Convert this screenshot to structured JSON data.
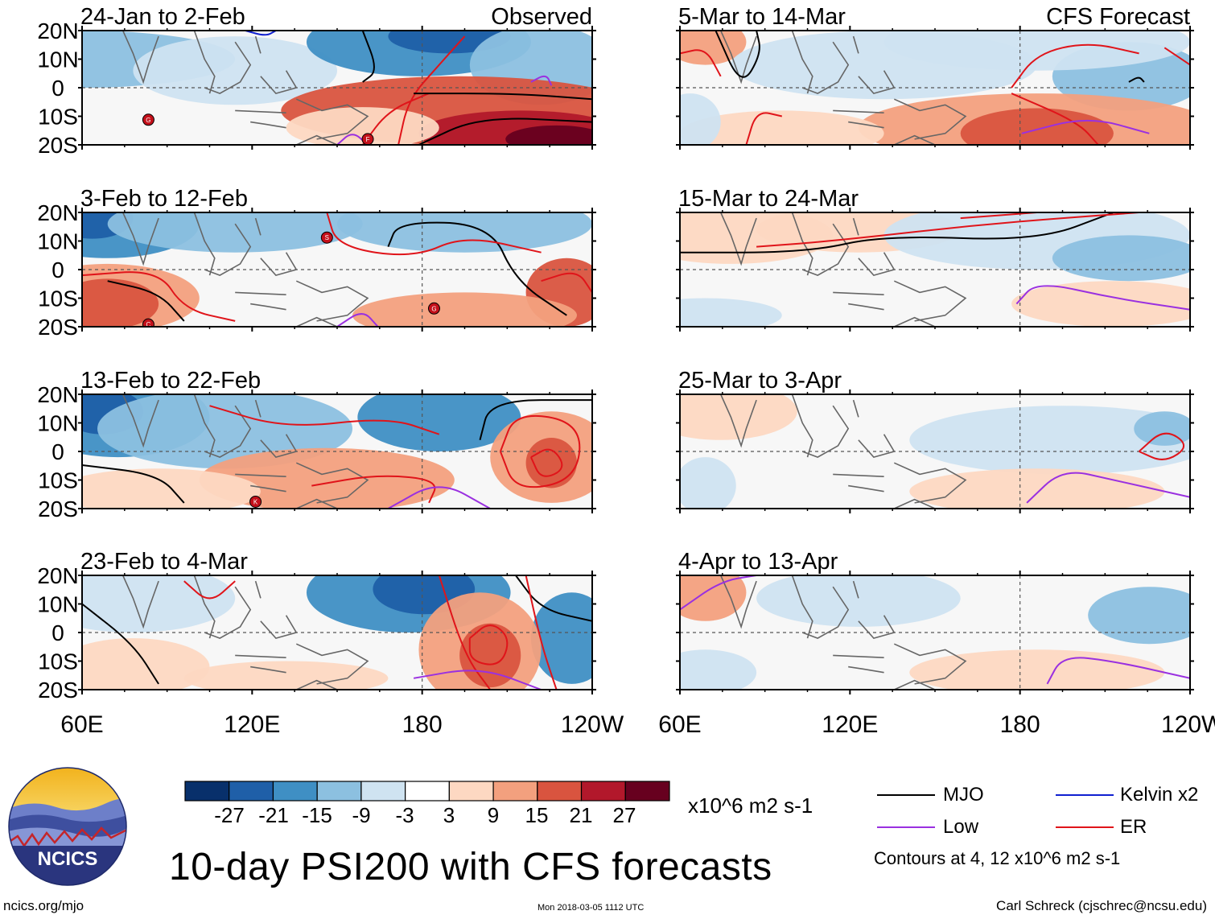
{
  "chart_data": {
    "type": "heatmap",
    "title": "10-day PSI200 with CFS forecasts",
    "variable": "PSI200 anomaly",
    "units": "x10^6 m2 s-1",
    "x_ticks": [
      "60E",
      "120E",
      "180",
      "120W"
    ],
    "y_ticks": [
      "20N",
      "10N",
      "0",
      "10S",
      "20S"
    ],
    "xlim": [
      60,
      240
    ],
    "ylim": [
      -20,
      20
    ],
    "colorbar_levels": [
      "-27",
      "-21",
      "-15",
      "-9",
      "-3",
      "3",
      "9",
      "15",
      "21",
      "27"
    ],
    "colorbar_colors": [
      "#08306b",
      "#1f5fa8",
      "#3f8fc4",
      "#8cc0e0",
      "#cfe3f1",
      "#ffffff",
      "#fdd8c2",
      "#f3a07e",
      "#d9543f",
      "#b2182b",
      "#67001f"
    ],
    "column_labels": {
      "left": "Observed",
      "right": "CFS Forecast"
    },
    "panels": [
      {
        "period": "24-Jan to 2-Feb",
        "source": "Observed",
        "cyclones": [
          "G",
          "F"
        ]
      },
      {
        "period": "3-Feb to 12-Feb",
        "source": "Observed",
        "cyclones": [
          "C",
          "S",
          "G"
        ]
      },
      {
        "period": "13-Feb to 22-Feb",
        "source": "Observed",
        "cyclones": [
          "K"
        ]
      },
      {
        "period": "23-Feb to 4-Mar",
        "source": "Observed",
        "cyclones": []
      },
      {
        "period": "5-Mar to 14-Mar",
        "source": "CFS Forecast",
        "cyclones": []
      },
      {
        "period": "15-Mar to 24-Mar",
        "source": "CFS Forecast",
        "cyclones": []
      },
      {
        "period": "25-Mar to 3-Apr",
        "source": "CFS Forecast",
        "cyclones": []
      },
      {
        "period": "4-Apr to 13-Apr",
        "source": "CFS Forecast",
        "cyclones": []
      }
    ],
    "contour_legend": [
      {
        "name": "MJO",
        "color": "#000000"
      },
      {
        "name": "Kelvin x2",
        "color": "#1020d0"
      },
      {
        "name": "Low",
        "color": "#9a30e0"
      },
      {
        "name": "ER",
        "color": "#e0141a"
      }
    ],
    "contour_note": "Contours at 4, 12 x10^6 m2 s-1"
  },
  "logo": {
    "text": "NCICS"
  },
  "footer": {
    "left": "ncics.org/mjo",
    "center": "Mon 2018-03-05 1112 UTC",
    "right": "Carl Schreck (cjschrec@ncsu.edu)"
  }
}
